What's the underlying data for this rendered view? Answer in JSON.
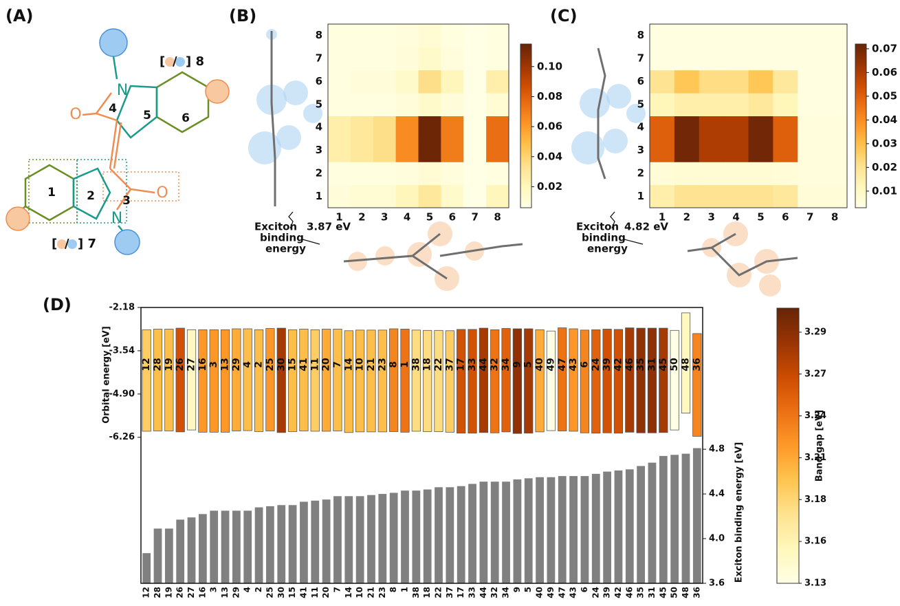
{
  "panel_labels": [
    "(A)",
    "(B)",
    "(C)",
    "(D)"
  ],
  "molecule": {
    "atoms": [
      "N",
      "O",
      "O",
      "N"
    ],
    "rings": [
      "1",
      "2",
      "3",
      "4",
      "5",
      "6"
    ],
    "sites": [
      {
        "open": "[",
        "sep": "/",
        "close": "] 8"
      },
      {
        "open": "[",
        "sep": "/",
        "close": "] 7"
      }
    ]
  },
  "chart_data": [
    {
      "type": "heatmap",
      "x": [
        1,
        2,
        3,
        4,
        5,
        6,
        7,
        8
      ],
      "y": [
        1,
        2,
        3,
        4,
        5,
        6,
        7,
        8
      ],
      "values": [
        [
          0.01,
          0.012,
          0.012,
          0.02,
          0.03,
          0.015,
          0.006,
          0.02
        ],
        [
          0.008,
          0.008,
          0.008,
          0.009,
          0.012,
          0.009,
          0.006,
          0.008
        ],
        [
          0.025,
          0.03,
          0.035,
          0.065,
          0.113,
          0.07,
          0.006,
          0.075
        ],
        [
          0.025,
          0.03,
          0.035,
          0.065,
          0.113,
          0.07,
          0.006,
          0.075
        ],
        [
          0.008,
          0.008,
          0.008,
          0.01,
          0.015,
          0.01,
          0.006,
          0.012
        ],
        [
          0.008,
          0.01,
          0.01,
          0.015,
          0.035,
          0.02,
          0.006,
          0.025
        ],
        [
          0.008,
          0.008,
          0.008,
          0.01,
          0.015,
          0.009,
          0.006,
          0.008
        ],
        [
          0.008,
          0.008,
          0.008,
          0.009,
          0.012,
          0.008,
          0.006,
          0.008
        ]
      ],
      "clim": [
        0.006,
        0.115
      ],
      "colormap": "YlOrBr",
      "cticks": [
        0.02,
        0.04,
        0.06,
        0.08,
        {
          "value": 0.1,
          "label": "0.10"
        }
      ],
      "annotation": {
        "lines": [
          "Exciton",
          "binding",
          "energy"
        ],
        "value": "3.87 eV"
      }
    },
    {
      "type": "heatmap",
      "x": [
        1,
        2,
        3,
        4,
        5,
        6,
        7,
        8
      ],
      "y": [
        1,
        2,
        3,
        4,
        5,
        6,
        7,
        8
      ],
      "values": [
        [
          0.015,
          0.02,
          0.02,
          0.02,
          0.02,
          0.018,
          0.006,
          0.006
        ],
        [
          0.006,
          0.007,
          0.007,
          0.007,
          0.007,
          0.006,
          0.005,
          0.005
        ],
        [
          0.05,
          0.07,
          0.06,
          0.06,
          0.07,
          0.05,
          0.005,
          0.005
        ],
        [
          0.05,
          0.07,
          0.06,
          0.06,
          0.07,
          0.05,
          0.005,
          0.005
        ],
        [
          0.012,
          0.015,
          0.015,
          0.015,
          0.018,
          0.012,
          0.004,
          0.004
        ],
        [
          0.02,
          0.028,
          0.022,
          0.022,
          0.028,
          0.018,
          0.004,
          0.004
        ],
        [
          0.004,
          0.004,
          0.004,
          0.004,
          0.004,
          0.004,
          0.004,
          0.004
        ],
        [
          0.004,
          0.004,
          0.004,
          0.004,
          0.004,
          0.004,
          0.004,
          0.004
        ]
      ],
      "clim": [
        0.003,
        0.072
      ],
      "colormap": "YlOrBr",
      "cticks": [
        0.01,
        0.02,
        0.03,
        0.04,
        0.05,
        0.06,
        0.07
      ],
      "annotation": {
        "lines": [
          "Exciton",
          "binding",
          "energy"
        ],
        "value": "4.82 eV"
      }
    },
    {
      "type": "range_bar",
      "ylabel": "Orbital energy [eV]",
      "categories": [
        "12",
        "28",
        "19",
        "26",
        "27",
        "16",
        "3",
        "13",
        "29",
        "4",
        "2",
        "25",
        "30",
        "15",
        "41",
        "11",
        "20",
        "7",
        "14",
        "10",
        "21",
        "23",
        "8",
        "1",
        "38",
        "18",
        "22",
        "37",
        "17",
        "33",
        "44",
        "32",
        "34",
        "9",
        "5",
        "40",
        "49",
        "47",
        "43",
        "6",
        "24",
        "39",
        "42",
        "46",
        "35",
        "31",
        "45",
        "50",
        "48",
        "36"
      ],
      "top": [
        -2.88,
        -2.86,
        -2.86,
        -2.83,
        -2.88,
        -2.88,
        -2.88,
        -2.88,
        -2.85,
        -2.85,
        -2.88,
        -2.84,
        -2.83,
        -2.88,
        -2.86,
        -2.88,
        -2.86,
        -2.86,
        -2.91,
        -2.89,
        -2.89,
        -2.89,
        -2.85,
        -2.86,
        -2.89,
        -2.9,
        -2.9,
        -2.91,
        -2.87,
        -2.87,
        -2.83,
        -2.88,
        -2.84,
        -2.85,
        -2.85,
        -2.88,
        -2.92,
        -2.82,
        -2.85,
        -2.89,
        -2.88,
        -2.86,
        -2.87,
        -2.82,
        -2.83,
        -2.83,
        -2.83,
        -2.9,
        -2.35,
        -3.0
      ],
      "bottom": [
        -6.07,
        -6.06,
        -6.06,
        -6.09,
        -6.03,
        -6.1,
        -6.1,
        -6.1,
        -6.06,
        -6.05,
        -6.08,
        -6.06,
        -6.11,
        -6.08,
        -6.06,
        -6.07,
        -6.07,
        -6.06,
        -6.11,
        -6.09,
        -6.09,
        -6.09,
        -6.08,
        -6.1,
        -6.07,
        -6.08,
        -6.08,
        -6.1,
        -6.13,
        -6.13,
        -6.11,
        -6.12,
        -6.09,
        -6.14,
        -6.13,
        -6.09,
        -6.05,
        -6.06,
        -6.07,
        -6.12,
        -6.13,
        -6.12,
        -6.13,
        -6.1,
        -6.12,
        -6.12,
        -6.11,
        -6.03,
        -5.5,
        -6.23
      ],
      "band_gap": [
        3.19,
        3.2,
        3.2,
        3.26,
        3.15,
        3.22,
        3.22,
        3.22,
        3.21,
        3.2,
        3.2,
        3.22,
        3.28,
        3.2,
        3.2,
        3.19,
        3.21,
        3.2,
        3.2,
        3.2,
        3.2,
        3.2,
        3.23,
        3.24,
        3.18,
        3.18,
        3.18,
        3.19,
        3.26,
        3.26,
        3.28,
        3.24,
        3.25,
        3.29,
        3.28,
        3.21,
        3.13,
        3.24,
        3.22,
        3.23,
        3.25,
        3.26,
        3.26,
        3.28,
        3.29,
        3.29,
        3.28,
        3.13,
        3.15,
        3.23
      ],
      "ylim": [
        -6.46,
        -2.18
      ],
      "yticks": [
        -2.18,
        -3.54,
        {
          "value": -4.9,
          "label": "-4.90"
        },
        -6.26
      ],
      "colormap": "YlOrBr",
      "clim": [
        3.1305,
        3.308
      ],
      "clabel": "Band gap [eV]",
      "cticks": [
        {
          "value": 3.1305,
          "label": "3.13"
        },
        {
          "value": 3.1575,
          "label": "3.16"
        },
        {
          "value": 3.1845,
          "label": "3.18"
        },
        {
          "value": 3.2115,
          "label": "3.21"
        },
        {
          "value": 3.2385,
          "label": "3.24"
        },
        {
          "value": 3.2655,
          "label": "3.27"
        },
        {
          "value": 3.2925,
          "label": "3.29"
        }
      ]
    },
    {
      "type": "bar",
      "ylabel": "Exciton binding energy [eV]",
      "color": "#808080",
      "categories": [
        "12",
        "28",
        "19",
        "26",
        "27",
        "16",
        "3",
        "13",
        "29",
        "4",
        "2",
        "25",
        "30",
        "15",
        "41",
        "11",
        "20",
        "7",
        "14",
        "10",
        "21",
        "23",
        "8",
        "1",
        "38",
        "18",
        "22",
        "37",
        "17",
        "33",
        "44",
        "32",
        "34",
        "9",
        "5",
        "40",
        "49",
        "47",
        "43",
        "6",
        "24",
        "39",
        "42",
        "46",
        "35",
        "31",
        "45",
        "50",
        "48",
        "36"
      ],
      "values": [
        3.87,
        4.09,
        4.09,
        4.17,
        4.19,
        4.22,
        4.25,
        4.25,
        4.25,
        4.25,
        4.28,
        4.29,
        4.3,
        4.3,
        4.33,
        4.34,
        4.35,
        4.38,
        4.38,
        4.38,
        4.39,
        4.4,
        4.41,
        4.43,
        4.43,
        4.44,
        4.46,
        4.46,
        4.47,
        4.49,
        4.51,
        4.51,
        4.51,
        4.53,
        4.54,
        4.55,
        4.55,
        4.56,
        4.56,
        4.56,
        4.58,
        4.6,
        4.61,
        4.62,
        4.65,
        4.68,
        4.74,
        4.75,
        4.76,
        4.81
      ],
      "ylim": [
        3.6,
        4.85
      ],
      "yticks": [
        3.6,
        {
          "value": 4,
          "label": "4.0"
        },
        4.4,
        4.8
      ]
    }
  ]
}
